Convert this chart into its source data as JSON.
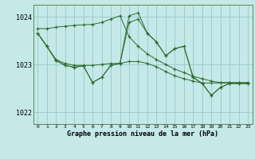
{
  "title": "Graphe pression niveau de la mer (hPa)",
  "bg_color": "#c5e8e8",
  "grid_color": "#9ecece",
  "line_color": "#2d6b2d",
  "x_ticks": [
    0,
    1,
    2,
    3,
    4,
    5,
    6,
    7,
    8,
    9,
    10,
    11,
    12,
    13,
    14,
    15,
    16,
    17,
    18,
    19,
    20,
    21,
    22,
    23
  ],
  "ylim": [
    1021.75,
    1024.25
  ],
  "yticks": [
    1022,
    1023,
    1024
  ],
  "series": [
    [
      1023.75,
      1023.75,
      1023.78,
      1023.8,
      1023.82,
      1023.83,
      1023.84,
      1023.88,
      1023.95,
      1024.02,
      1023.58,
      1023.38,
      1023.22,
      1023.1,
      1023.0,
      1022.9,
      1022.83,
      1022.75,
      1022.7,
      1022.65,
      1022.62,
      1022.62,
      1022.62,
      1022.62
    ],
    [
      1023.65,
      1023.38,
      1023.1,
      1023.02,
      1022.98,
      1022.98,
      1022.98,
      1023.0,
      1023.02,
      1023.02,
      1023.06,
      1023.06,
      1023.02,
      1022.95,
      1022.85,
      1022.76,
      1022.7,
      1022.65,
      1022.61,
      1022.61,
      1022.61,
      1022.61,
      1022.61,
      1022.61
    ],
    [
      1023.65,
      1023.38,
      1023.08,
      1022.98,
      1022.94,
      1022.97,
      1022.62,
      1022.73,
      1022.98,
      1023.02,
      1024.02,
      1024.08,
      1023.65,
      1023.47,
      1023.18,
      1023.33,
      1023.38,
      1022.73,
      1022.6,
      1022.35,
      1022.52,
      1022.6,
      1022.6,
      1022.6
    ],
    [
      1023.65,
      1023.38,
      1023.08,
      1022.98,
      1022.94,
      1022.97,
      1022.62,
      1022.73,
      1022.98,
      1023.02,
      1023.88,
      1023.95,
      1023.65,
      1023.47,
      1023.18,
      1023.33,
      1023.38,
      1022.73,
      1022.6,
      1022.35,
      1022.52,
      1022.6,
      1022.6,
      1022.6
    ]
  ]
}
